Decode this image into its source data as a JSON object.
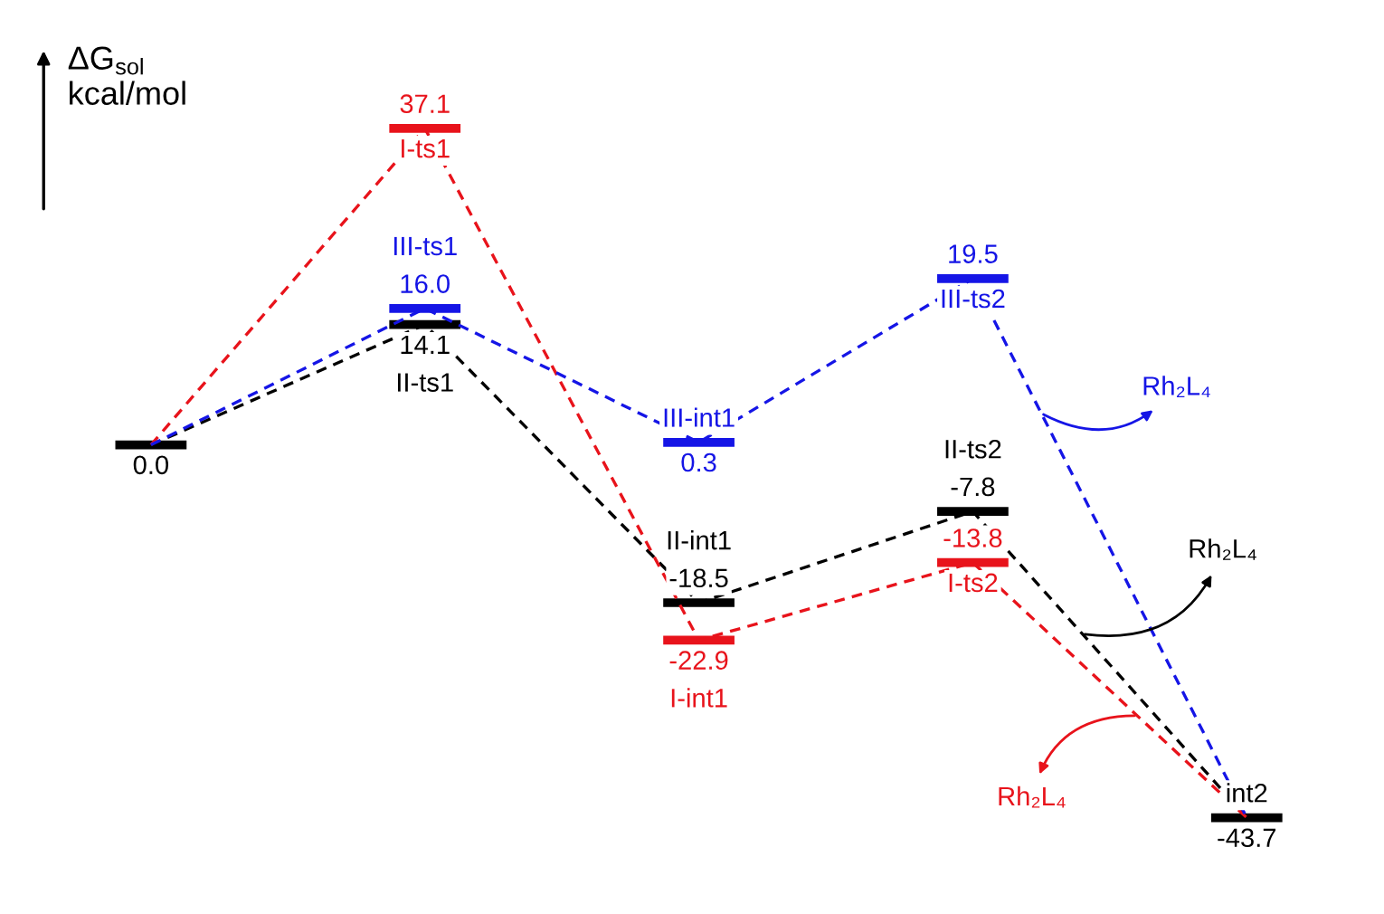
{
  "chart_data": {
    "type": "line",
    "ylabel": "ΔG$_{sol}$\nkcal/mol",
    "categories": [
      null,
      null,
      null,
      null,
      null
    ],
    "series": [
      {
        "color": "#000000",
        "values": [
          0.0,
          14.1,
          -18.5,
          -7.8,
          -43.7
        ],
        "value_labels": [
          "0.0",
          "14.1",
          "-18.5",
          "-7.8",
          "-43.7"
        ]
      },
      {
        "color": "#e8131b",
        "values": [
          0.0,
          37.1,
          -22.9,
          -13.8,
          -43.7
        ],
        "value_labels": [
          null,
          "37.1",
          "-22.9",
          "-13.8",
          null
        ]
      },
      {
        "color": "#1515e6",
        "values": [
          0.0,
          16.0,
          0.3,
          19.5,
          -43.7
        ],
        "value_labels": [
          null,
          "16.0",
          "0.3",
          "19.5",
          null
        ]
      }
    ],
    "line_style": "dashed",
    "annotations": [
      {
        "text": "II-ts1",
        "y": 14.1
      },
      {
        "text": "II-int1",
        "y": -18.5
      },
      {
        "text": "II-ts2",
        "y": -7.8
      },
      {
        "text": "I-ts1",
        "y": 37.1
      },
      {
        "text": "I-int1",
        "y": -22.9
      },
      {
        "text": "I-ts2",
        "y": -13.8
      },
      {
        "text": "III-ts1",
        "y": 16.0
      },
      {
        "text": "III-int1",
        "y": 0.3
      },
      {
        "text": "III-ts2",
        "y": 19.5
      },
      "int2",
      "Rh₂L₄",
      "Rh₂L₄",
      "Rh₂L₄"
    ]
  }
}
